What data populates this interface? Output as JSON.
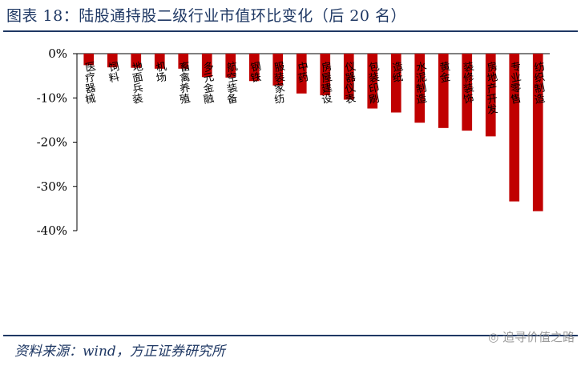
{
  "figure": {
    "title": "图表 18：陆股通持股二级行业市值环比变化（后 20 名）",
    "source": "资料来源：wind，方正证券研究所",
    "watermark": "追寻价值之路"
  },
  "colors": {
    "bar": "#c00000",
    "rule": "#1f3864",
    "axis": "#000000"
  },
  "chart_data": {
    "type": "bar",
    "title": "陆股通持股二级行业市值环比变化（后 20 名）",
    "categories": [
      "医疗器械",
      "饲料",
      "地面兵装",
      "机场",
      "畜禽养殖",
      "多元金融",
      "航空装备",
      "钢铁",
      "服装家纺",
      "中药",
      "房屋建设",
      "仪器仪表",
      "包装印刷",
      "造纸",
      "水泥制造",
      "黄金",
      "装修装饰",
      "房地产开发",
      "专业零售",
      "纺织制造"
    ],
    "values": [
      -2.6,
      -3.1,
      -3.2,
      -3.4,
      -3.4,
      -5.3,
      -5.4,
      -6.2,
      -7.2,
      -9.0,
      -9.4,
      -10.4,
      -12.4,
      -13.3,
      -15.6,
      -16.8,
      -17.4,
      -18.7,
      -33.4,
      -35.6
    ],
    "ylim": [
      -40,
      0
    ],
    "yticks": [
      0,
      -10,
      -20,
      -30,
      -40
    ],
    "ytick_labels": [
      "0%",
      "-10%",
      "-20%",
      "-30%",
      "-40%"
    ],
    "xlabel": "",
    "ylabel": "",
    "grid": false
  }
}
